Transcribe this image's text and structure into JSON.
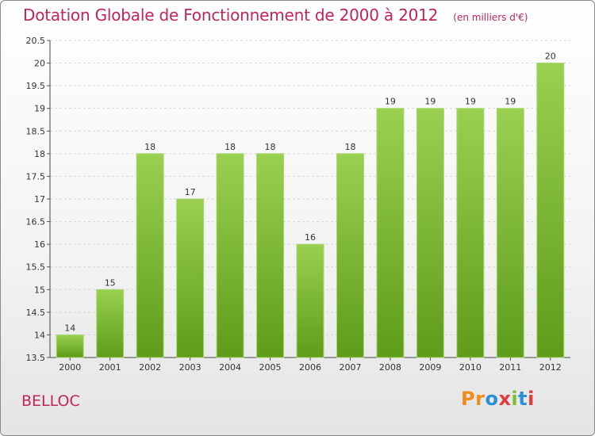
{
  "chart_data": {
    "type": "bar",
    "title": "Dotation Globale de Fonctionnement de 2000 à 2012",
    "unit": "(en milliers d'€)",
    "categories": [
      "2000",
      "2001",
      "2002",
      "2003",
      "2004",
      "2005",
      "2006",
      "2007",
      "2008",
      "2009",
      "2010",
      "2011",
      "2012"
    ],
    "values": [
      14,
      15,
      18,
      17,
      18,
      18,
      16,
      18,
      19,
      19,
      19,
      19,
      20
    ],
    "y_tick_labels": [
      "13.5",
      "14",
      "14.5",
      "15",
      "15.5",
      "16",
      "16.5",
      "17",
      "17.5",
      "18",
      "18.5",
      "19",
      "19.5",
      "20",
      "20.5"
    ],
    "ylim": [
      13.5,
      20.5
    ],
    "grid": true,
    "bar_color": "#7ab82e"
  },
  "place": "BELLOC",
  "logo": {
    "text": "Proxiti",
    "colors": [
      "#f08c1a",
      "#2a8fd6",
      "#7bbf2a",
      "#e23b3b"
    ]
  }
}
